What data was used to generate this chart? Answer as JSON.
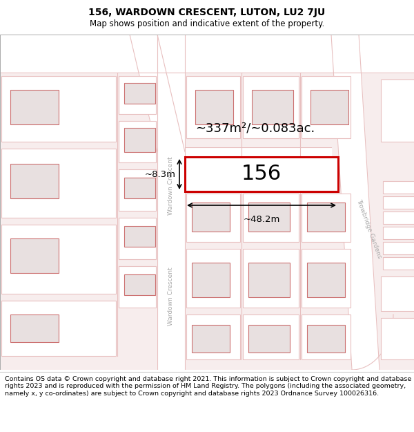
{
  "title": "156, WARDOWN CRESCENT, LUTON, LU2 7JU",
  "subtitle": "Map shows position and indicative extent of the property.",
  "area_text": "~337m²/~0.083ac.",
  "number_text": "156",
  "dim_width": "~48.2m",
  "dim_height": "~8.3m",
  "footer": "Contains OS data © Crown copyright and database right 2021. This information is subject to Crown copyright and database rights 2023 and is reproduced with the permission of HM Land Registry. The polygons (including the associated geometry, namely x, y co-ordinates) are subject to Crown copyright and database rights 2023 Ordnance Survey 100026316.",
  "map_bg": "#f7eded",
  "road_color": "#ffffff",
  "plot_fill": "#f5f0f0",
  "plot_line": "#e8c0c0",
  "building_fill": "#e8e0e0",
  "building_line": "#cc7070",
  "highlight_fill": "#ffffff",
  "highlight_line": "#cc0000",
  "dim_line_color": "#000000",
  "road_label_color": "#aaaaaa",
  "area_text_color": "#000000",
  "title_fs": 10,
  "subtitle_fs": 8.5,
  "area_fs": 13,
  "number_fs": 22,
  "dim_fs": 9.5,
  "road_label_fs": 6.5,
  "footer_fs": 6.8
}
